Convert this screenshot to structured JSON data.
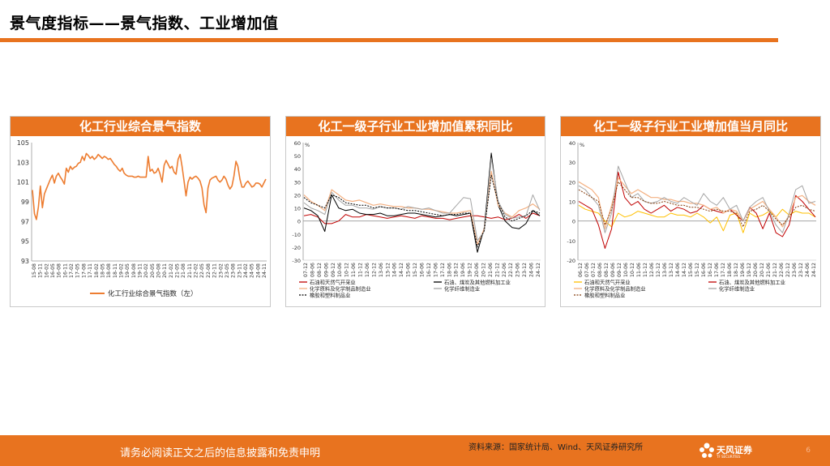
{
  "page": {
    "title": "景气度指标——景气指数、工业增加值",
    "page_number": "6"
  },
  "footer": {
    "disclaimer": "请务必阅读正文之后的信息披露和免责申明",
    "source": "资料来源：国家统计局、Wind、天风证券研究所",
    "logo_text": "天风证券",
    "logo_sub": "TF SECURITIES"
  },
  "colors": {
    "accent": "#e8731f",
    "line_orange": "#ed7d31",
    "red": "#c00000",
    "black": "#000000",
    "gray": "#a5a5a5",
    "peach": "#f4b183",
    "gold": "#ffc000",
    "brown": "#843c0c"
  },
  "chart_data": [
    {
      "type": "line",
      "title": "化工行业综合景气指数",
      "ylim": [
        93,
        105
      ],
      "yticks": [
        "105",
        "103",
        "101",
        "99",
        "97",
        "95",
        "93"
      ],
      "xticks": [
        "15-08",
        "15-11",
        "16-02",
        "16-05",
        "16-08",
        "16-11",
        "17-02",
        "17-05",
        "17-08",
        "17-11",
        "18-02",
        "18-05",
        "18-08",
        "18-11",
        "19-02",
        "19-05",
        "19-08",
        "19-11",
        "20-02",
        "20-05",
        "20-08",
        "20-11",
        "21-02",
        "21-05",
        "21-08",
        "21-11",
        "22-02",
        "22-05",
        "22-08",
        "22-11",
        "23-02",
        "23-05",
        "23-08",
        "23-11",
        "24-02",
        "24-05",
        "24-08",
        "24-11"
      ],
      "legend": "化工行业综合景气指数（左）",
      "series": [
        {
          "name": "化工行业综合景气指数（左）",
          "values": [
            100.2,
            97.8,
            97.2,
            98.5,
            100.6,
            98.4,
            99.8,
            100.3,
            100.8,
            101.3,
            101.7,
            100.9,
            101.6,
            101.9,
            101.5,
            101.2,
            100.8,
            102.4,
            102.0,
            102.6,
            102.3,
            102.5,
            102.6,
            102.9,
            103.0,
            103.6,
            103.2,
            103.9,
            103.7,
            103.4,
            103.6,
            103.3,
            103.5,
            103.8,
            103.6,
            103.4,
            103.6,
            103.5,
            103.3,
            103.4,
            103.1,
            102.8,
            102.6,
            102.3,
            102.1,
            102.4,
            101.9,
            101.7,
            101.6,
            101.6,
            101.6,
            101.5,
            101.5,
            101.6,
            101.5,
            101.5,
            101.5,
            101.5,
            103.6,
            102.1,
            102.3,
            101.9,
            102.0,
            102.4,
            101.8,
            101.0,
            102.7,
            103.2,
            102.8,
            102.4,
            102.6,
            102.0,
            101.8,
            103.3,
            103.8,
            102.6,
            101.1,
            99.6,
            101.0,
            101.5,
            101.3,
            101.5,
            101.6,
            101.4,
            101.1,
            100.4,
            98.7,
            97.9,
            100.4,
            101.2,
            101.4,
            101.5,
            101.6,
            101.2,
            101.0,
            101.2,
            101.6,
            101.3,
            100.7,
            100.3,
            100.6,
            101.6,
            103.1,
            102.6,
            101.3,
            100.5,
            100.5,
            100.9,
            101.1,
            100.8,
            100.5,
            100.6,
            100.9,
            100.9,
            100.8,
            100.5,
            100.9,
            101.3
          ]
        }
      ]
    },
    {
      "type": "line",
      "title": "化工一级子行业工业增加值累积同比",
      "ylabel": "%",
      "ylim": [
        -30,
        60
      ],
      "yticks": [
        "60",
        "50",
        "40",
        "30",
        "20",
        "10",
        "0",
        "-10",
        "-20",
        "-30"
      ],
      "xticks": [
        "07-12",
        "08-06",
        "08-12",
        "09-06",
        "09-12",
        "10-06",
        "10-12",
        "11-06",
        "11-12",
        "12-06",
        "12-12",
        "13-06",
        "13-12",
        "14-06",
        "14-12",
        "15-06",
        "15-12",
        "16-06",
        "16-12",
        "17-06",
        "17-12",
        "18-06",
        "18-12",
        "19-06",
        "19-12",
        "20-06",
        "20-12",
        "21-06",
        "21-12",
        "22-06",
        "22-12",
        "23-06",
        "23-12",
        "24-06",
        "24-12"
      ],
      "series": [
        {
          "name": "石油和天然气开采业",
          "values": [
            4,
            5,
            3,
            -2,
            -2,
            0,
            5,
            3,
            3,
            5,
            4,
            3,
            2,
            3,
            4,
            3,
            2,
            4,
            3,
            2,
            2,
            1,
            2,
            3,
            4,
            4,
            3,
            2,
            3,
            1,
            2,
            5,
            2,
            6,
            4
          ]
        },
        {
          "name": "石油、煤炭及其他燃料加工业",
          "values": [
            10,
            8,
            4,
            -8,
            20,
            10,
            8,
            9,
            6,
            5,
            5,
            6,
            4,
            4,
            5,
            6,
            6,
            5,
            4,
            3,
            4,
            5,
            4,
            5,
            6,
            -24,
            -5,
            52,
            12,
            0,
            -5,
            -6,
            -2,
            8,
            4
          ]
        },
        {
          "name": "化学原料及化学制品制造业",
          "values": [
            20,
            15,
            12,
            8,
            24,
            20,
            16,
            15,
            16,
            14,
            12,
            13,
            12,
            11,
            11,
            10,
            10,
            9,
            9,
            8,
            7,
            6,
            6,
            7,
            8,
            -18,
            -6,
            38,
            12,
            6,
            3,
            8,
            10,
            13,
            9
          ]
        },
        {
          "name": "化学纤维制造业",
          "values": [
            14,
            10,
            8,
            5,
            22,
            16,
            12,
            12,
            10,
            10,
            9,
            11,
            10,
            10,
            9,
            11,
            10,
            9,
            10,
            8,
            6,
            6,
            12,
            18,
            17,
            -15,
            -8,
            48,
            15,
            5,
            2,
            3,
            4,
            20,
            8
          ]
        },
        {
          "name": "橡胶和塑料制品业",
          "values": [
            18,
            14,
            12,
            10,
            20,
            18,
            14,
            13,
            12,
            12,
            10,
            11,
            10,
            10,
            9,
            8,
            8,
            7,
            6,
            5,
            4,
            5,
            5,
            6,
            6,
            -20,
            -7,
            35,
            14,
            3,
            0,
            2,
            4,
            8,
            6
          ]
        }
      ]
    },
    {
      "type": "line",
      "title": "化工一级子行业工业增加值当月同比",
      "ylabel": "%",
      "ylim": [
        -20,
        40
      ],
      "yticks": [
        "40",
        "30",
        "20",
        "10",
        "0",
        "-10",
        "-20"
      ],
      "xticks": [
        "06-12",
        "07-06",
        "07-12",
        "08-06",
        "08-12",
        "09-06",
        "09-12",
        "10-06",
        "10-12",
        "11-06",
        "11-12",
        "12-06",
        "12-12",
        "13-06",
        "13-12",
        "14-06",
        "14-12",
        "15-06",
        "15-12",
        "16-06",
        "16-12",
        "17-06",
        "17-12",
        "18-06",
        "18-12",
        "19-06",
        "19-12",
        "20-06",
        "20-12",
        "21-06",
        "21-12",
        "22-06",
        "22-12",
        "23-06",
        "23-12",
        "24-06",
        "24-12"
      ],
      "series": [
        {
          "name": "石油和天然气开采业",
          "values": [
            8,
            6,
            5,
            4,
            0,
            -3,
            4,
            2,
            3,
            5,
            4,
            3,
            2,
            2,
            4,
            3,
            3,
            2,
            4,
            2,
            -1,
            2,
            -5,
            3,
            4,
            -6,
            4,
            2,
            3,
            5,
            2,
            6,
            3,
            5,
            4,
            4,
            2
          ]
        },
        {
          "name": "石油、煤炭及其他燃料加工业",
          "values": [
            10,
            8,
            6,
            -2,
            -14,
            -4,
            25,
            12,
            8,
            10,
            6,
            4,
            6,
            8,
            5,
            7,
            6,
            4,
            5,
            8,
            6,
            5,
            4,
            6,
            3,
            0,
            7,
            4,
            -4,
            4,
            -6,
            -8,
            -2,
            13,
            10,
            6,
            2
          ]
        },
        {
          "name": "化学原料及化学制品制造业",
          "values": [
            20,
            18,
            16,
            12,
            -4,
            8,
            22,
            18,
            14,
            16,
            14,
            12,
            12,
            11,
            11,
            10,
            10,
            9,
            9,
            8,
            6,
            7,
            4,
            6,
            5,
            0,
            6,
            8,
            10,
            6,
            2,
            -3,
            3,
            12,
            13,
            10,
            8
          ]
        },
        {
          "name": "化学纤维制造业",
          "values": [
            18,
            16,
            12,
            8,
            -6,
            4,
            28,
            20,
            12,
            14,
            10,
            9,
            10,
            12,
            10,
            9,
            12,
            10,
            8,
            14,
            10,
            8,
            12,
            6,
            8,
            0,
            7,
            10,
            12,
            5,
            -2,
            -6,
            4,
            16,
            18,
            9,
            10
          ]
        },
        {
          "name": "橡胶和塑料制品业",
          "values": [
            16,
            14,
            12,
            10,
            -2,
            6,
            20,
            16,
            12,
            12,
            10,
            9,
            9,
            10,
            9,
            8,
            8,
            7,
            7,
            6,
            5,
            6,
            5,
            5,
            4,
            -3,
            5,
            6,
            8,
            5,
            1,
            -2,
            2,
            7,
            8,
            6,
            5
          ]
        }
      ]
    }
  ]
}
